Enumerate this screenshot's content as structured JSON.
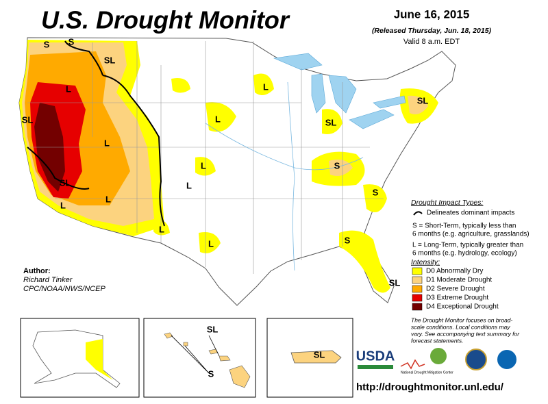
{
  "header": {
    "title": "U.S. Drought Monitor",
    "date": "June 16, 2015",
    "released": "(Released Thursday, Jun. 18, 2015)",
    "valid": "Valid 8 a.m. EDT"
  },
  "map": {
    "labels": [
      "S",
      "S",
      "SL",
      "L",
      "SL",
      "L",
      "SL",
      "L",
      "L",
      "L",
      "L",
      "L",
      "L",
      "L",
      "L",
      "SL",
      "SL",
      "S",
      "S",
      "S",
      "SL"
    ],
    "inset_labels": [
      "SL",
      "S",
      "SL"
    ]
  },
  "legend": {
    "impact_title": "Drought Impact Types:",
    "delineates": "Delineates dominant impacts",
    "short_term": [
      "S = Short-Term, typically less than",
      "6 months (e.g. agriculture, grasslands)"
    ],
    "long_term": [
      "L = Long-Term, typically greater than",
      "6 months (e.g. hydrology, ecology)"
    ],
    "intensity_title": "Intensity:",
    "intensity": [
      {
        "label": "D0 Abnormally Dry",
        "color": "#ffff00"
      },
      {
        "label": "D1 Moderate Drought",
        "color": "#fcd37f"
      },
      {
        "label": "D2 Severe Drought",
        "color": "#ffaa00"
      },
      {
        "label": "D3 Extreme Drought",
        "color": "#e60000"
      },
      {
        "label": "D4 Exceptional Drought",
        "color": "#730000"
      }
    ],
    "note": [
      "The Drought Monitor focuses on broad-",
      "scale conditions. Local conditions may",
      "vary. See accompanying text summary for",
      "forecast statements."
    ]
  },
  "author": {
    "heading": "Author:",
    "name": "Richard Tinker",
    "org": "CPC/NOAA/NWS/NCEP"
  },
  "logos": {
    "usda": "USDA",
    "ndmc": "National Drought Mitigation Center"
  },
  "url": "http://droughtmonitor.unl.edu/"
}
